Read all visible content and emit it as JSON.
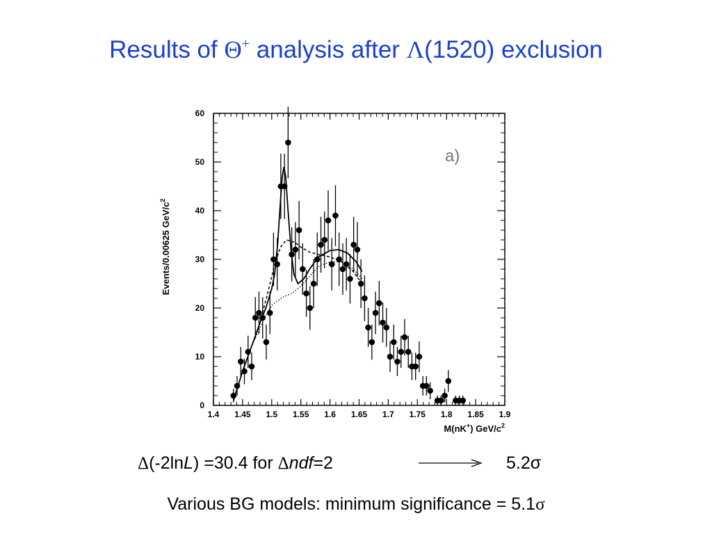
{
  "slide": {
    "title_pre": "Results of ",
    "title_theta": "Θ",
    "title_sup": "+",
    "title_mid": " analysis after ",
    "title_lambda": "Λ",
    "title_post": "(1520) exclusion",
    "title_color": "#1c3fcc"
  },
  "result": {
    "delta1": "Δ",
    "part1": "(-2ln",
    "L": "L",
    "part2": ") =30.4 for ",
    "delta2": "Δ",
    "ndf": "ndf",
    "part3": "=2",
    "value": "5.2",
    "sigma": "σ"
  },
  "summary": {
    "text": "Various BG models:  minimum significance = 5.1",
    "sigma": "σ"
  },
  "chart_data": {
    "type": "scatter",
    "panel_label": "a)",
    "ylabel_main": "Events/0.00625 GeV/c",
    "ylabel_sup": "2",
    "xlabel_main": "M(nK",
    "xlabel_sup1": "+",
    "xlabel_mid": ") GeV/c",
    "xlabel_sup2": "2",
    "xlim": [
      1.4,
      1.9
    ],
    "ylim": [
      0,
      60
    ],
    "x_ticks": [
      "1.4",
      "1.45",
      "1.5",
      "1.55",
      "1.6",
      "1.65",
      "1.7",
      "1.75",
      "1.8",
      "1.85",
      "1.9"
    ],
    "y_ticks": [
      "0",
      "10",
      "20",
      "30",
      "40",
      "50",
      "60"
    ],
    "grid": false,
    "series": [
      {
        "style": "points-with-errors",
        "points": [
          [
            1.4344,
            2
          ],
          [
            1.4406,
            4
          ],
          [
            1.4469,
            9
          ],
          [
            1.4531,
            7
          ],
          [
            1.4594,
            11
          ],
          [
            1.4656,
            8
          ],
          [
            1.4719,
            18
          ],
          [
            1.4781,
            19
          ],
          [
            1.4844,
            18
          ],
          [
            1.4906,
            13
          ],
          [
            1.4969,
            19
          ],
          [
            1.5031,
            30
          ],
          [
            1.5094,
            29
          ],
          [
            1.5156,
            45
          ],
          [
            1.5219,
            45
          ],
          [
            1.5281,
            54
          ],
          [
            1.5344,
            31
          ],
          [
            1.5406,
            32
          ],
          [
            1.5469,
            36
          ],
          [
            1.5531,
            28
          ],
          [
            1.5594,
            23
          ],
          [
            1.5656,
            20
          ],
          [
            1.5719,
            25
          ],
          [
            1.5781,
            30
          ],
          [
            1.5844,
            33
          ],
          [
            1.5906,
            34
          ],
          [
            1.5969,
            38
          ],
          [
            1.6031,
            29
          ],
          [
            1.6094,
            39
          ],
          [
            1.6156,
            30
          ],
          [
            1.6219,
            28
          ],
          [
            1.6281,
            29
          ],
          [
            1.6344,
            26
          ],
          [
            1.6406,
            33
          ],
          [
            1.6469,
            32
          ],
          [
            1.6531,
            25
          ],
          [
            1.6594,
            22
          ],
          [
            1.6656,
            16
          ],
          [
            1.6719,
            13
          ],
          [
            1.6781,
            19
          ],
          [
            1.6844,
            21
          ],
          [
            1.6906,
            17
          ],
          [
            1.6969,
            16
          ],
          [
            1.7031,
            10
          ],
          [
            1.7094,
            13
          ],
          [
            1.7156,
            9
          ],
          [
            1.7219,
            11
          ],
          [
            1.7281,
            14
          ],
          [
            1.7344,
            11
          ],
          [
            1.7406,
            8
          ],
          [
            1.7469,
            8
          ],
          [
            1.7531,
            10
          ],
          [
            1.7594,
            4
          ],
          [
            1.7656,
            4
          ],
          [
            1.7719,
            3
          ],
          [
            1.7844,
            1
          ],
          [
            1.7906,
            1
          ],
          [
            1.7969,
            2
          ],
          [
            1.8031,
            5
          ],
          [
            1.8156,
            1
          ],
          [
            1.8219,
            1
          ],
          [
            1.8281,
            1
          ]
        ]
      },
      {
        "style": "solid",
        "points": [
          [
            1.4344,
            1
          ],
          [
            1.45,
            7
          ],
          [
            1.465,
            12
          ],
          [
            1.48,
            17
          ],
          [
            1.49,
            20
          ],
          [
            1.5,
            24
          ],
          [
            1.505,
            27
          ],
          [
            1.51,
            33
          ],
          [
            1.515,
            42
          ],
          [
            1.518,
            47
          ],
          [
            1.521,
            49
          ],
          [
            1.524,
            47
          ],
          [
            1.528,
            40
          ],
          [
            1.533,
            32
          ],
          [
            1.538,
            27
          ],
          [
            1.545,
            25
          ],
          [
            1.555,
            26
          ],
          [
            1.565,
            28
          ],
          [
            1.58,
            30.5
          ],
          [
            1.6,
            31.8
          ],
          [
            1.615,
            32
          ],
          [
            1.63,
            31.3
          ],
          [
            1.645,
            29.5
          ],
          [
            1.655,
            27.5
          ]
        ]
      },
      {
        "style": "dashed",
        "points": [
          [
            1.4344,
            1
          ],
          [
            1.45,
            7
          ],
          [
            1.465,
            12
          ],
          [
            1.48,
            17
          ],
          [
            1.495,
            24
          ],
          [
            1.505,
            29
          ],
          [
            1.515,
            32.5
          ],
          [
            1.525,
            34
          ],
          [
            1.54,
            33.5
          ],
          [
            1.55,
            32.5
          ],
          [
            1.565,
            31.5
          ],
          [
            1.58,
            31
          ],
          [
            1.6,
            30.5
          ],
          [
            1.62,
            29.5
          ],
          [
            1.64,
            27.5
          ],
          [
            1.655,
            25
          ]
        ]
      },
      {
        "style": "dotted",
        "points": [
          [
            1.4344,
            1
          ],
          [
            1.45,
            7
          ],
          [
            1.465,
            12
          ],
          [
            1.48,
            16
          ],
          [
            1.49,
            18.5
          ],
          [
            1.5,
            20.5
          ],
          [
            1.51,
            21.5
          ],
          [
            1.52,
            22.3
          ],
          [
            1.535,
            23
          ],
          [
            1.55,
            24.5
          ],
          [
            1.565,
            26.5
          ],
          [
            1.58,
            28.5
          ],
          [
            1.6,
            29.5
          ],
          [
            1.62,
            29.5
          ],
          [
            1.64,
            28
          ],
          [
            1.655,
            26
          ]
        ]
      }
    ]
  }
}
